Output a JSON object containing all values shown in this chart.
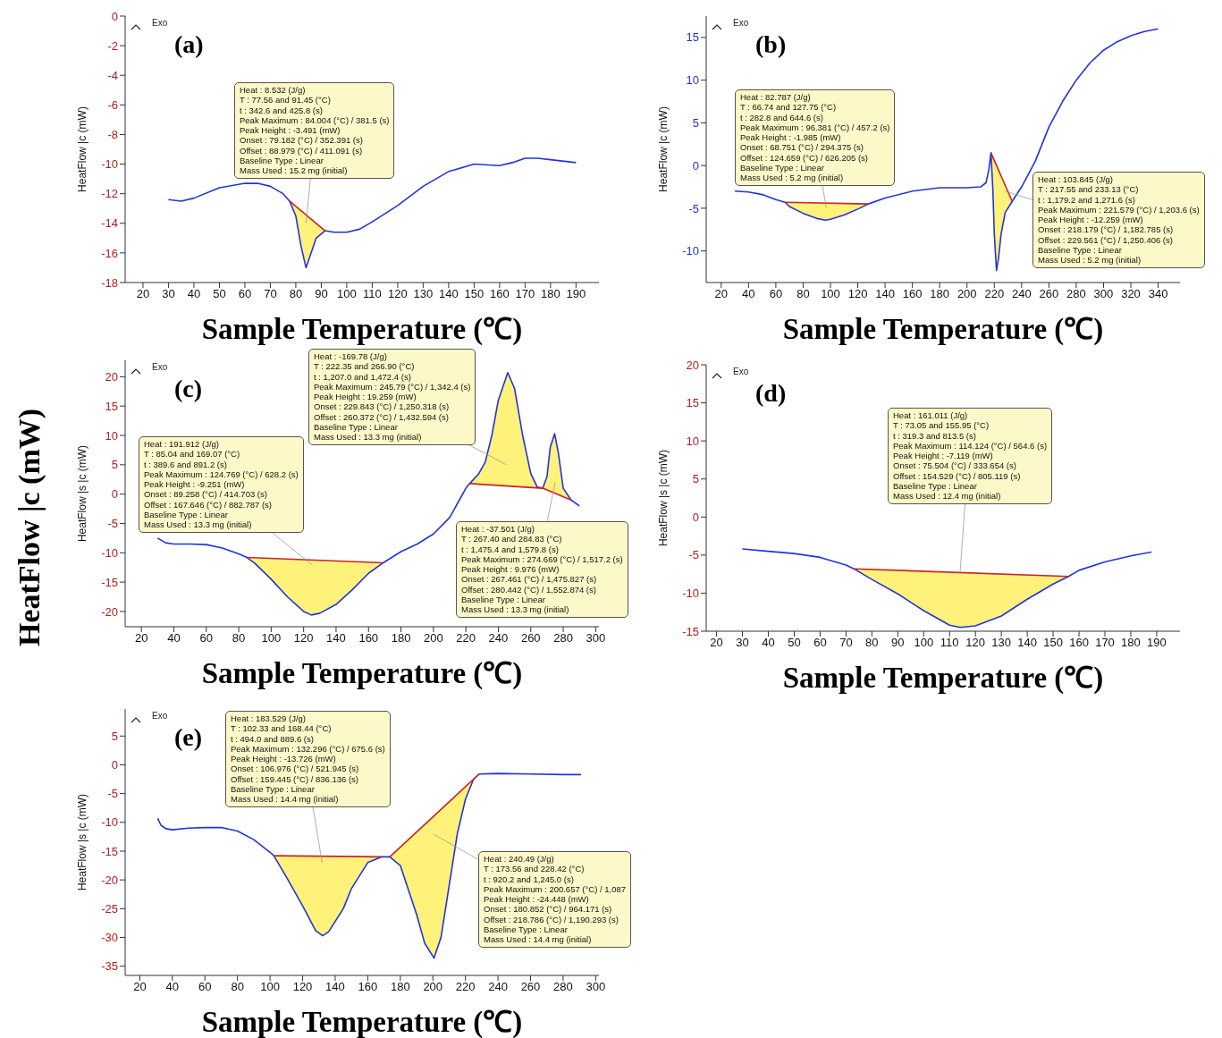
{
  "chart_data": [
    {
      "type": "line",
      "title": "(a)",
      "xlabel": "Sample Temperature (℃)",
      "ylabel": "HeatFlow |c (mW)",
      "xlim": [
        13,
        199
      ],
      "ylim": [
        -18,
        0
      ],
      "xticks": [
        20,
        30,
        40,
        50,
        60,
        70,
        80,
        90,
        100,
        110,
        120,
        130,
        140,
        150,
        160,
        170,
        180,
        190
      ],
      "yticks": [
        -18,
        -16,
        -14,
        -12,
        -10,
        -8,
        -6,
        -4,
        -2,
        0
      ],
      "series": [
        {
          "type": "line",
          "color": "#2233dd",
          "x": [
            30,
            35,
            40,
            50,
            60,
            65,
            70,
            75,
            77.56,
            80,
            82,
            84,
            86,
            88,
            91.45,
            95,
            100,
            105,
            110,
            120,
            130,
            140,
            150,
            160,
            165,
            170,
            175,
            180,
            190
          ],
          "values": [
            -12.4,
            -12.5,
            -12.3,
            -11.6,
            -11.3,
            -11.3,
            -11.5,
            -12.0,
            -12.5,
            -13.5,
            -15.5,
            -17.0,
            -16.0,
            -15.0,
            -14.5,
            -14.6,
            -14.6,
            -14.4,
            -13.9,
            -12.8,
            -11.5,
            -10.5,
            -10.0,
            -10.1,
            -9.9,
            -9.6,
            -9.6,
            -9.7,
            -9.9
          ],
          "lower": [
            null,
            null,
            null,
            null,
            null,
            null,
            null,
            null,
            -12.5,
            -13.5,
            -15.5,
            -17.0,
            -16.0,
            -15.0,
            -14.5,
            null,
            null,
            null,
            null,
            null,
            null,
            null,
            null,
            null,
            null,
            null,
            null,
            null,
            null
          ],
          "upper": [
            null,
            null,
            null,
            null,
            null,
            null,
            null,
            null,
            -12.5,
            -12.9,
            -13.1,
            -13.4,
            -13.7,
            -14.0,
            -14.5,
            null,
            null,
            null,
            null,
            null,
            null,
            null,
            null,
            null,
            null,
            null,
            null,
            null,
            null
          ]
        },
        {
          "type": "line",
          "color": "#cc2222",
          "x": [
            77.56,
            91.45
          ],
          "values": [
            -12.5,
            -14.5
          ]
        }
      ],
      "annotations": [
        "Exo",
        "Heat : 8.532 (J/g)\nT : 77.56 and 91.45 (°C)\nt : 342.6 and 425.8 (s)\nPeak Maximum : 84.004 (°C) / 381.5 (s)\nPeak Height : -3.491 (mW)\nOnset : 79.182 (°C) / 352.391 (s)\nOffset : 88.979 (°C) / 411.091 (s)\nBaseline Type : Linear\nMass Used : 15.2 mg (initial)"
      ]
    },
    {
      "type": "line",
      "title": "(b)",
      "xlabel": "Sample Temperature (℃)",
      "ylabel": "HeatFlow |c (mW)",
      "xlim": [
        9,
        356
      ],
      "ylim": [
        -13.7,
        17.5
      ],
      "xticks": [
        20,
        40,
        60,
        80,
        100,
        120,
        140,
        160,
        180,
        200,
        220,
        240,
        260,
        280,
        300,
        320,
        340
      ],
      "yticks": [
        -10,
        -5,
        0,
        5,
        10,
        15
      ],
      "series": [
        {
          "type": "line",
          "color": "#2233dd",
          "x": [
            30,
            40,
            50,
            60,
            66.74,
            70,
            80,
            90,
            96.4,
            100,
            110,
            120,
            127.75,
            140,
            160,
            180,
            200,
            210,
            214,
            216,
            217.55,
            219,
            220,
            221.6,
            223,
            225,
            228,
            233.13,
            240,
            250,
            260,
            270,
            280,
            290,
            300,
            310,
            320,
            330,
            340
          ],
          "values": [
            -3.0,
            -3.1,
            -3.4,
            -4.0,
            -4.3,
            -4.8,
            -5.6,
            -6.2,
            -6.4,
            -6.3,
            -5.8,
            -5.1,
            -4.5,
            -3.8,
            -3.0,
            -2.6,
            -2.6,
            -2.5,
            -2.0,
            -0.5,
            1.5,
            -3,
            -8,
            -12.3,
            -11,
            -8,
            -5.5,
            -4.2,
            -2.5,
            0.5,
            4.5,
            7.5,
            10.0,
            12.0,
            13.5,
            14.5,
            15.2,
            15.7,
            16.0
          ],
          "lower": [
            null,
            null,
            null,
            null,
            -4.3,
            -4.8,
            -5.6,
            -6.2,
            -6.4,
            -6.3,
            -5.8,
            -5.1,
            -4.5,
            null,
            null,
            null,
            null,
            null,
            null,
            null,
            1.5,
            -3,
            -8,
            -12.3,
            -11,
            -8,
            -5.5,
            -4.2,
            null,
            null,
            null,
            null,
            null,
            null,
            null,
            null,
            null,
            null,
            null
          ],
          "upper": [
            null,
            null,
            null,
            null,
            -4.3,
            -4.3,
            -4.3,
            -4.4,
            -4.4,
            -4.4,
            -4.4,
            -4.5,
            -4.5,
            null,
            null,
            null,
            null,
            null,
            null,
            null,
            1.5,
            1.0,
            0.6,
            0.0,
            -0.5,
            -1.2,
            -2.3,
            -4.2,
            null,
            null,
            null,
            null,
            null,
            null,
            null,
            null,
            null,
            null,
            null
          ]
        },
        {
          "type": "line",
          "color": "#cc2222",
          "x": [
            66.74,
            127.75
          ],
          "values": [
            -4.3,
            -4.5
          ]
        },
        {
          "type": "line",
          "color": "#cc2222",
          "x": [
            217.55,
            233.13
          ],
          "values": [
            1.5,
            -4.2
          ]
        }
      ],
      "annotations": [
        "Exo",
        "Heat : 82.787 (J/g)\nT : 66.74 and 127.75 (°C)\nt : 282.8 and 644.6 (s)\nPeak Maximum : 96.381 (°C) / 457.2 (s)\nPeak Height : -1.985 (mW)\nOnset : 68.751 (°C) / 294.375 (s)\nOffset : 124.659 (°C) / 626.205 (s)\nBaseline Type : Linear\nMass Used : 5.2 mg (initial)",
        "Heat : 103.845 (J/g)\nT : 217.55 and 233.13 (°C)\nt : 1,179.2 and 1,271.6 (s)\nPeak Maximum : 221.579 (°C) / 1,203.6 (s)\nPeak Height : -12.259 (mW)\nOnset : 218.179 (°C) / 1,182.785 (s)\nOffset : 229.561 (°C) / 1,250.406 (s)\nBaseline Type : Linear\nMass Used : 5.2 mg (initial)"
      ]
    },
    {
      "type": "line",
      "title": "(c)",
      "xlabel": "Sample Temperature (℃)",
      "ylabel": "HeatFlow |s |c (mW)",
      "xlim": [
        10,
        302
      ],
      "ylim": [
        -22.6,
        22.8
      ],
      "xticks": [
        20,
        40,
        60,
        80,
        100,
        120,
        140,
        160,
        180,
        200,
        220,
        240,
        260,
        280,
        300
      ],
      "yticks": [
        -20,
        -15,
        -10,
        -5,
        0,
        5,
        10,
        15,
        20
      ],
      "series": [
        {
          "type": "line",
          "color": "#2233dd",
          "x": [
            30,
            35,
            40,
            50,
            60,
            70,
            80,
            85.04,
            90,
            100,
            110,
            120,
            124.8,
            130,
            140,
            150,
            160,
            169.07,
            180,
            190,
            200,
            210,
            215,
            220,
            222.35,
            228,
            232,
            236,
            240,
            245.8,
            250,
            255,
            260,
            264,
            267.4,
            270,
            272,
            274.7,
            277,
            280,
            284.83,
            290
          ],
          "values": [
            -7.5,
            -8.3,
            -8.5,
            -8.5,
            -8.6,
            -9.2,
            -10.2,
            -10.8,
            -11.8,
            -14.5,
            -17.5,
            -20.0,
            -20.6,
            -20.3,
            -18.8,
            -16.3,
            -13.5,
            -11.7,
            -9.8,
            -8.5,
            -6.8,
            -4.0,
            -1.5,
            1.0,
            1.8,
            3.5,
            5.5,
            10,
            16,
            20.7,
            18,
            10,
            3.5,
            1.2,
            1.0,
            3,
            8,
            10.3,
            7,
            1.0,
            -1.0,
            -2.0
          ],
          "lower": [
            null,
            null,
            null,
            null,
            null,
            null,
            null,
            -10.8,
            -11.8,
            -14.5,
            -17.5,
            -20.0,
            -20.6,
            -20.3,
            -18.8,
            -16.3,
            -13.5,
            -11.7,
            null,
            null,
            null,
            null,
            null,
            null,
            1.8,
            1.7,
            1.6,
            1.6,
            1.5,
            1.4,
            1.3,
            1.2,
            1.1,
            1.1,
            1.0,
            0.7,
            0.5,
            0.2,
            -0.1,
            -0.5,
            -1.0,
            null
          ],
          "upper": [
            null,
            null,
            null,
            null,
            null,
            null,
            null,
            -10.8,
            -10.9,
            -11.0,
            -11.1,
            -11.2,
            -11.2,
            -11.3,
            -11.4,
            -11.5,
            -11.6,
            -11.7,
            null,
            null,
            null,
            null,
            null,
            null,
            1.8,
            3.5,
            5.5,
            10,
            16,
            20.7,
            18,
            10,
            3.5,
            1.2,
            1.0,
            3,
            8,
            10.3,
            7,
            1.0,
            -1.0,
            null
          ]
        },
        {
          "type": "line",
          "color": "#cc2222",
          "x": [
            85.04,
            169.07
          ],
          "values": [
            -10.8,
            -11.7
          ]
        },
        {
          "type": "line",
          "color": "#cc2222",
          "x": [
            222.35,
            267.4,
            284.83
          ],
          "values": [
            1.8,
            1.0,
            -1.0
          ]
        }
      ],
      "annotations": [
        "Exo",
        "Heat : -169.78 (J/g)\nT : 222.35 and 266.90 (°C)\nt : 1,207.0 and 1,472.4 (s)\nPeak Maximum : 245.79 (°C) / 1,342.4 (s)\nPeak Height : 19.259 (mW)\nOnset : 229.843 (°C) / 1,250.318 (s)\nOffset : 260.372 (°C) / 1,432.594 (s)\nBaseline Type : Linear\nMass Used : 13.3 mg (initial)",
        "Heat : 191.912 (J/g)\nT : 85.04 and 169.07 (°C)\nt : 389.6 and 891.2 (s)\nPeak Maximum : 124.769 (°C) / 628.2 (s)\nPeak Height : -9.251 (mW)\nOnset : 89.258 (°C) / 414.703 (s)\nOffset : 167.646 (°C) / 882.787 (s)\nBaseline Type : Linear\nMass Used : 13.3 mg (initial)",
        "Heat : -37.501 (J/g)\nT : 267.40 and 284.83 (°C)\nt : 1,475.4 and 1,579.8 (s)\nPeak Maximum : 274.669 (°C) / 1,517.2 (s)\nPeak Height : 9.976 (mW)\nOnset : 267.461 (°C) / 1,475.827 (s)\nOffset : 280.442 (°C) / 1,552.874 (s)\nBaseline Type : Linear\nMass Used : 13.3 mg (initial)"
      ]
    },
    {
      "type": "line",
      "title": "(d)",
      "xlabel": "Sample Temperature (℃)",
      "ylabel": "HeatFlow |s |c (mW)",
      "xlim": [
        16,
        199
      ],
      "ylim": [
        -15,
        20
      ],
      "xticks": [
        20,
        30,
        40,
        50,
        60,
        70,
        80,
        90,
        100,
        110,
        120,
        130,
        140,
        150,
        160,
        170,
        180,
        190
      ],
      "yticks": [
        -15,
        -10,
        -5,
        0,
        5,
        10,
        15,
        20
      ],
      "series": [
        {
          "type": "line",
          "color": "#2233dd",
          "x": [
            30,
            40,
            50,
            60,
            70,
            73.05,
            80,
            90,
            100,
            110,
            114.1,
            120,
            130,
            140,
            150,
            155.95,
            160,
            170,
            180,
            188
          ],
          "values": [
            -4.2,
            -4.5,
            -4.8,
            -5.3,
            -6.3,
            -6.8,
            -8.2,
            -10.1,
            -12.3,
            -14.2,
            -14.5,
            -14.3,
            -13.0,
            -10.8,
            -8.8,
            -7.8,
            -7.0,
            -5.9,
            -5.1,
            -4.6
          ],
          "lower": [
            null,
            null,
            null,
            null,
            null,
            -6.8,
            -8.2,
            -10.1,
            -12.3,
            -14.2,
            -14.5,
            -14.3,
            -13.0,
            -10.8,
            -8.8,
            -7.8,
            null,
            null,
            null,
            null
          ],
          "upper": [
            null,
            null,
            null,
            null,
            null,
            -6.8,
            -6.9,
            -7.0,
            -7.1,
            -7.3,
            -7.3,
            -7.4,
            -7.5,
            -7.6,
            -7.7,
            -7.8,
            null,
            null,
            null,
            null
          ]
        },
        {
          "type": "line",
          "color": "#cc2222",
          "x": [
            73.05,
            155.95
          ],
          "values": [
            -6.8,
            -7.8
          ]
        }
      ],
      "annotations": [
        "Exo",
        "Heat : 161.011 (J/g)\nT : 73.05 and 155.95 (°C)\nt : 319.3 and 813.5 (s)\nPeak Maximum : 114.124 (°C) / 564.6 (s)\nPeak Height : -7.119 (mW)\nOnset : 75.504 (°C) / 333.654 (s)\nOffset : 154.529 (°C) / 805.119 (s)\nBaseline Type : Linear\nMass Used : 12.4 mg (initial)"
      ]
    },
    {
      "type": "line",
      "title": "(e)",
      "xlabel": "Sample Temperature (℃)",
      "ylabel": "HeatFlow |s |c (mW)",
      "xlim": [
        11,
        302
      ],
      "ylim": [
        -36.6,
        9.7
      ],
      "xticks": [
        20,
        40,
        60,
        80,
        100,
        120,
        140,
        160,
        180,
        200,
        220,
        240,
        260,
        280,
        300
      ],
      "yticks": [
        -35,
        -30,
        -25,
        -20,
        -15,
        -10,
        -5,
        0,
        5
      ],
      "series": [
        {
          "type": "line",
          "color": "#2233dd",
          "x": [
            31,
            33,
            36,
            40,
            50,
            60,
            70,
            80,
            90,
            100,
            102.33,
            110,
            120,
            128,
            132.3,
            136,
            145,
            150,
            160,
            168.44,
            173.56,
            180,
            190,
            195,
            200.7,
            205,
            210,
            215,
            220,
            225,
            228.42,
            240,
            260,
            280,
            291
          ],
          "values": [
            -9.3,
            -10.5,
            -11.1,
            -11.3,
            -11.0,
            -10.9,
            -10.9,
            -11.5,
            -13.0,
            -15.2,
            -15.8,
            -19.5,
            -24.5,
            -28.8,
            -29.7,
            -29.0,
            -25,
            -21.5,
            -17.0,
            -16.0,
            -16.0,
            -17.5,
            -26,
            -31,
            -33.6,
            -30,
            -21,
            -12,
            -6,
            -2.5,
            -1.6,
            -1.5,
            -1.6,
            -1.7,
            -1.7
          ],
          "lower": [
            null,
            null,
            null,
            null,
            null,
            null,
            null,
            null,
            null,
            null,
            -15.8,
            -19.5,
            -24.5,
            -28.8,
            -29.7,
            -29.0,
            -25,
            -21.5,
            -17.0,
            -16.0,
            -16.0,
            -17.5,
            -26,
            -31,
            -33.6,
            -30,
            -21,
            -12,
            -6,
            -2.5,
            -1.6,
            null,
            null,
            null,
            null
          ],
          "upper": [
            null,
            null,
            null,
            null,
            null,
            null,
            null,
            null,
            null,
            null,
            -15.8,
            -15.8,
            -15.9,
            -15.9,
            -15.9,
            -15.9,
            -15.9,
            -15.9,
            -16.0,
            -16.0,
            -16.0,
            -14.3,
            -11.7,
            -10.4,
            -8.9,
            -7.8,
            -6.4,
            -5.1,
            -3.8,
            -2.5,
            -1.6,
            null,
            null,
            null,
            null
          ]
        },
        {
          "type": "line",
          "color": "#cc2222",
          "x": [
            102.33,
            168.44
          ],
          "values": [
            -15.8,
            -16.0
          ]
        },
        {
          "type": "line",
          "color": "#cc2222",
          "x": [
            173.56,
            228.42
          ],
          "values": [
            -16.0,
            -1.6
          ]
        }
      ],
      "annotations": [
        "Exo",
        "Heat : 183.529 (J/g)\nT : 102.33 and 168.44 (°C)\nt : 494.0 and 889.6 (s)\nPeak Maximum : 132.296 (°C) / 675.6 (s)\nPeak Height : -13.726 (mW)\nOnset : 106.976 (°C) / 521.945 (s)\nOffset : 159.445 (°C) / 836.136 (s)\nBaseline Type : Linear\nMass Used : 14.4 mg (initial)",
        "Heat : 240.49 (J/g)\nT : 173.56 and 228.42 (°C)\nt : 920.2 and 1,245.0 (s)\nPeak Maximum : 200.657 (°C) / 1,087\nPeak Height : -24.448 (mW)\nOnset : 180.852 (°C) / 964.171 (s)\nOffset : 218.786 (°C) / 1,190.293 (s)\nBaseline Type : Linear\nMass Used : 14.4 mg (initial)"
      ]
    },
    {
      "type": "other",
      "title": "HeatFlow |c (mW)"
    }
  ]
}
